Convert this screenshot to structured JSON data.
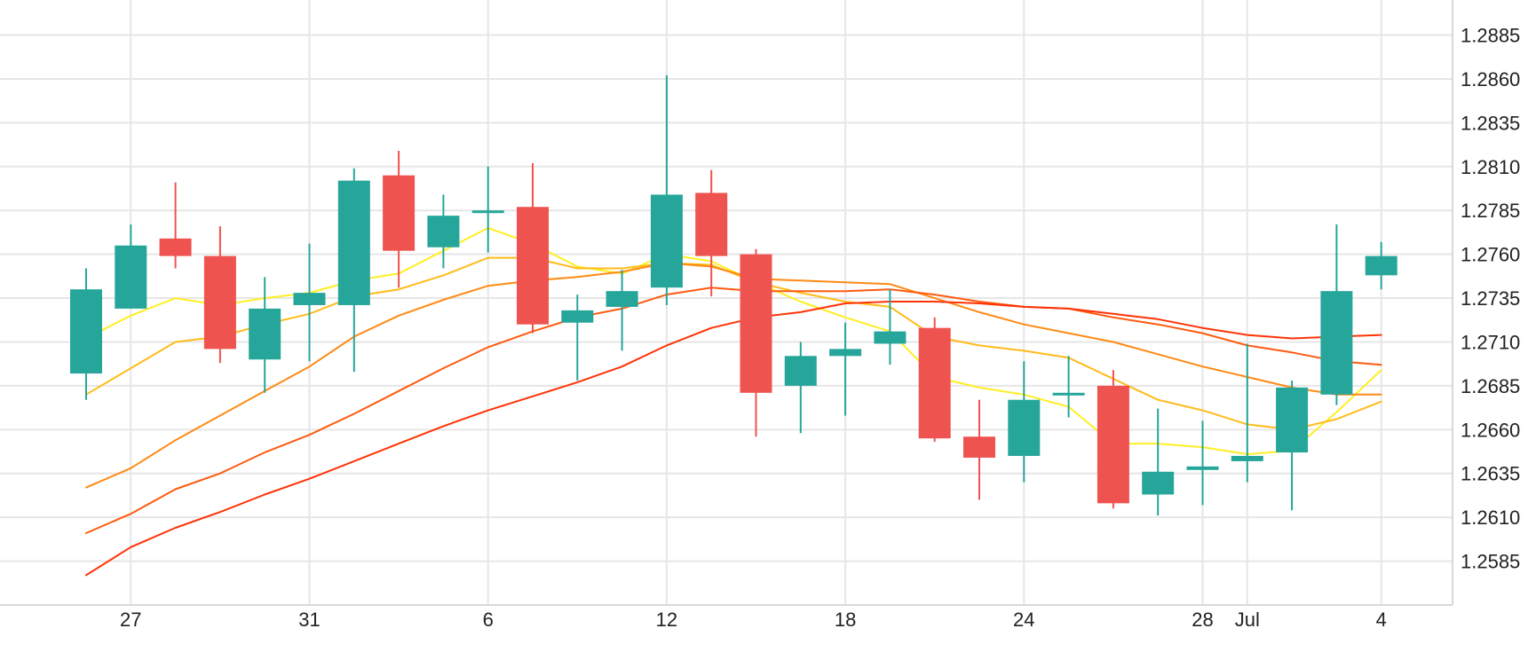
{
  "chart_data": {
    "type": "candlestick",
    "y_axis": {
      "ticks": [
        "1.2585",
        "1.2610",
        "1.2635",
        "1.2660",
        "1.2685",
        "1.2710",
        "1.2735",
        "1.2760",
        "1.2785",
        "1.2810",
        "1.2835",
        "1.2860",
        "1.2885"
      ],
      "min": 1.256,
      "max": 1.2905,
      "position": "right"
    },
    "x_axis": {
      "ticks": [
        {
          "label": "27",
          "index": 1
        },
        {
          "label": "31",
          "index": 5
        },
        {
          "label": "6",
          "index": 9
        },
        {
          "label": "12",
          "index": 13
        },
        {
          "label": "18",
          "index": 17
        },
        {
          "label": "24",
          "index": 21
        },
        {
          "label": "28",
          "index": 25
        },
        {
          "label": "Jul",
          "index": 26
        },
        {
          "label": "4",
          "index": 29
        }
      ]
    },
    "grid": true,
    "candles": [
      {
        "o": 1.2692,
        "h": 1.2752,
        "l": 1.2677,
        "c": 1.274
      },
      {
        "o": 1.2729,
        "h": 1.2777,
        "l": 1.2729,
        "c": 1.2765
      },
      {
        "o": 1.2769,
        "h": 1.2801,
        "l": 1.2752,
        "c": 1.2759
      },
      {
        "o": 1.2759,
        "h": 1.2776,
        "l": 1.2698,
        "c": 1.2706
      },
      {
        "o": 1.27,
        "h": 1.2747,
        "l": 1.2681,
        "c": 1.2729
      },
      {
        "o": 1.2731,
        "h": 1.2766,
        "l": 1.2699,
        "c": 1.2738
      },
      {
        "o": 1.2731,
        "h": 1.2809,
        "l": 1.2693,
        "c": 1.2802
      },
      {
        "o": 1.2805,
        "h": 1.2819,
        "l": 1.2741,
        "c": 1.2762
      },
      {
        "o": 1.2764,
        "h": 1.2794,
        "l": 1.2752,
        "c": 1.2782
      },
      {
        "o": 1.2785,
        "h": 1.281,
        "l": 1.2761,
        "c": 1.2785
      },
      {
        "o": 1.2787,
        "h": 1.2812,
        "l": 1.2715,
        "c": 1.272
      },
      {
        "o": 1.2721,
        "h": 1.2737,
        "l": 1.2688,
        "c": 1.2728
      },
      {
        "o": 1.273,
        "h": 1.2751,
        "l": 1.2705,
        "c": 1.2739
      },
      {
        "o": 1.2741,
        "h": 1.2862,
        "l": 1.2731,
        "c": 1.2794
      },
      {
        "o": 1.2795,
        "h": 1.2808,
        "l": 1.2736,
        "c": 1.2759
      },
      {
        "o": 1.276,
        "h": 1.2763,
        "l": 1.2656,
        "c": 1.2681
      },
      {
        "o": 1.2685,
        "h": 1.271,
        "l": 1.2658,
        "c": 1.2702
      },
      {
        "o": 1.2702,
        "h": 1.2721,
        "l": 1.2668,
        "c": 1.2706
      },
      {
        "o": 1.2709,
        "h": 1.274,
        "l": 1.2697,
        "c": 1.2716
      },
      {
        "o": 1.2718,
        "h": 1.2724,
        "l": 1.2653,
        "c": 1.2655
      },
      {
        "o": 1.2656,
        "h": 1.2677,
        "l": 1.262,
        "c": 1.2644
      },
      {
        "o": 1.2645,
        "h": 1.2699,
        "l": 1.263,
        "c": 1.2677
      },
      {
        "o": 1.268,
        "h": 1.2702,
        "l": 1.2667,
        "c": 1.2681
      },
      {
        "o": 1.2685,
        "h": 1.2694,
        "l": 1.2615,
        "c": 1.2618
      },
      {
        "o": 1.2623,
        "h": 1.2672,
        "l": 1.2611,
        "c": 1.2636
      },
      {
        "o": 1.2637,
        "h": 1.2665,
        "l": 1.2617,
        "c": 1.2639
      },
      {
        "o": 1.2642,
        "h": 1.2709,
        "l": 1.263,
        "c": 1.2645
      },
      {
        "o": 1.2647,
        "h": 1.2688,
        "l": 1.2614,
        "c": 1.2684
      },
      {
        "o": 1.268,
        "h": 1.2777,
        "l": 1.2674,
        "c": 1.2739
      },
      {
        "o": 1.2748,
        "h": 1.2767,
        "l": 1.274,
        "c": 1.2759
      }
    ],
    "moving_averages": [
      {
        "color": "#ffee24",
        "values": [
          1.2712,
          1.2725,
          1.2735,
          1.2731,
          1.2735,
          1.2738,
          1.2745,
          1.2749,
          1.2762,
          1.2775,
          1.2766,
          1.2753,
          1.2749,
          1.276,
          1.2756,
          1.2744,
          1.2733,
          1.2724,
          1.2716,
          1.269,
          1.2684,
          1.268,
          1.2673,
          1.2652,
          1.2652,
          1.265,
          1.2646,
          1.2648,
          1.267,
          1.2694
        ]
      },
      {
        "color": "#ffbb1a",
        "values": [
          1.268,
          1.2695,
          1.271,
          1.2713,
          1.272,
          1.2726,
          1.2736,
          1.274,
          1.2748,
          1.2758,
          1.2758,
          1.2752,
          1.2752,
          1.2755,
          1.2754,
          1.2744,
          1.2738,
          1.2733,
          1.273,
          1.2713,
          1.2708,
          1.2705,
          1.2701,
          1.2689,
          1.2677,
          1.2671,
          1.2663,
          1.266,
          1.2666,
          1.2676
        ]
      },
      {
        "color": "#ff8a14",
        "values": [
          1.2627,
          1.2638,
          1.2654,
          1.2668,
          1.2682,
          1.2696,
          1.2713,
          1.2725,
          1.2734,
          1.2742,
          1.2745,
          1.2747,
          1.275,
          1.2755,
          1.2753,
          1.2746,
          1.2745,
          1.2744,
          1.2743,
          1.2735,
          1.2727,
          1.272,
          1.2715,
          1.271,
          1.2703,
          1.2696,
          1.269,
          1.2684,
          1.268,
          1.268
        ]
      },
      {
        "color": "#ff5a0f",
        "values": [
          1.2601,
          1.2612,
          1.2626,
          1.2635,
          1.2647,
          1.2657,
          1.2669,
          1.2682,
          1.2695,
          1.2707,
          1.2716,
          1.2724,
          1.2729,
          1.2737,
          1.2741,
          1.2739,
          1.2739,
          1.2739,
          1.274,
          1.2737,
          1.2733,
          1.273,
          1.2729,
          1.2724,
          1.272,
          1.2715,
          1.2708,
          1.2704,
          1.2699,
          1.2697
        ]
      },
      {
        "color": "#ff3306",
        "values": [
          1.2577,
          1.2593,
          1.2604,
          1.2613,
          1.2623,
          1.2632,
          1.2642,
          1.2652,
          1.2662,
          1.2671,
          1.2679,
          1.2687,
          1.2696,
          1.2708,
          1.2718,
          1.2724,
          1.2727,
          1.2732,
          1.2733,
          1.2733,
          1.2732,
          1.273,
          1.2729,
          1.2726,
          1.2723,
          1.2718,
          1.2714,
          1.2712,
          1.2713,
          1.2714
        ]
      }
    ],
    "colors": {
      "up": "#26a69a",
      "down": "#ef5350",
      "grid": "#e6e6e6",
      "text": "#222222"
    }
  }
}
